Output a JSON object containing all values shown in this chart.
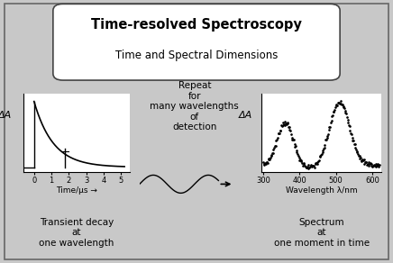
{
  "title_line1": "Time-resolved Spectroscopy",
  "title_line2": "Time and Spectral Dimensions",
  "left_ylabel": "ΔA",
  "left_xlabel": "Time/µs →",
  "left_xticks": [
    0,
    1,
    2,
    3,
    4,
    5
  ],
  "left_caption": "Transient decay\nat\none wavelength",
  "right_ylabel": "ΔA",
  "right_xlabel": "Wavelength λ/nm",
  "right_xticks": [
    300,
    400,
    500,
    600
  ],
  "right_caption": "Spectrum\nat\none moment in time",
  "middle_text": "Repeat\nfor\nmany wavelengths\nof\ndetection",
  "bg_color": "#c8c8c8",
  "box_facecolor": "#ffffff",
  "text_color": "#000000",
  "outer_border": "#888888",
  "title_fontsize": 10.5,
  "subtitle_fontsize": 8.5
}
